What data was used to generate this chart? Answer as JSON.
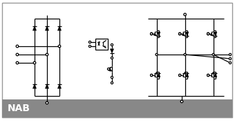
{
  "title": "NAB",
  "bg_color": "#ffffff",
  "border_color": "#999999",
  "footer_bg": "#888888",
  "footer_text_color": "#ffffff",
  "footer_fontsize": 10,
  "line_color": "#000000",
  "line_width": 0.9,
  "fig_width": 3.4,
  "fig_height": 1.97,
  "dpi": 100,
  "xlim": [
    0,
    340
  ],
  "ylim": [
    0,
    197
  ]
}
